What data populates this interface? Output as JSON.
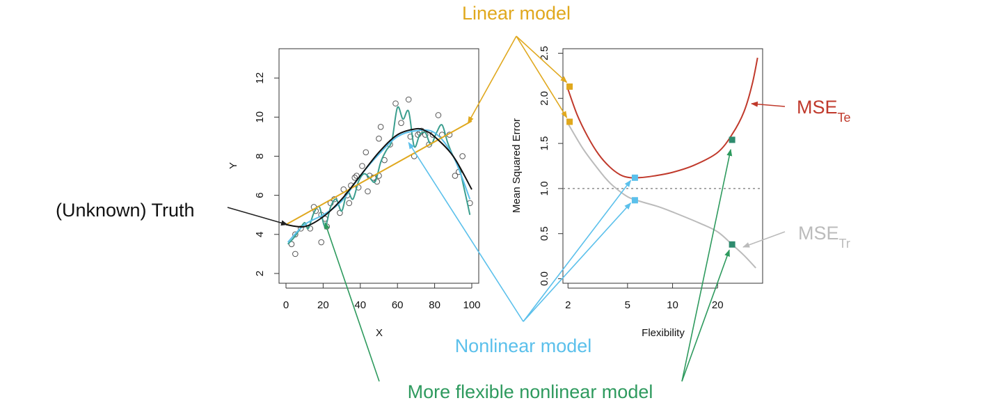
{
  "annotations": {
    "linear_model": {
      "text": "Linear model",
      "color": "#E0A81E"
    },
    "nonlinear_model": {
      "text": "Nonlinear model",
      "color": "#5BC0EB"
    },
    "more_flexible": {
      "text": "More flexible nonlinear model",
      "color": "#2E9A5E"
    },
    "truth": {
      "text": "(Unknown) Truth",
      "color": "#111111"
    },
    "mse_te": {
      "main": "MSE",
      "sub": "Te",
      "color": "#C0392B"
    },
    "mse_tr": {
      "main": "MSE",
      "sub": "Tr",
      "color": "#BBBBBB"
    }
  },
  "colors": {
    "truth": "#111111",
    "linear": "#E0A81E",
    "smooth": "#5BC0EB",
    "flexible": "#3A9E8E",
    "mse_te": "#C0392B",
    "mse_tr": "#BBBBBB",
    "dots": "#555555",
    "marker_flexible": "#2E8B6E"
  },
  "chart_data": [
    {
      "type": "scatter",
      "xlabel": "X",
      "ylabel": "Y",
      "xlim": [
        0,
        100
      ],
      "ylim": [
        1.5,
        13.5
      ],
      "xticks": [
        0,
        20,
        40,
        60,
        80,
        100
      ],
      "yticks": [
        2,
        4,
        6,
        8,
        10,
        12
      ],
      "points": [
        [
          3,
          3.5
        ],
        [
          5,
          4.0
        ],
        [
          5,
          3.0
        ],
        [
          8,
          4.3
        ],
        [
          13,
          4.3
        ],
        [
          15,
          5.4
        ],
        [
          16,
          5.2
        ],
        [
          19,
          5.0
        ],
        [
          19,
          3.6
        ],
        [
          21,
          4.8
        ],
        [
          22,
          4.4
        ],
        [
          24,
          5.6
        ],
        [
          26,
          5.8
        ],
        [
          29,
          5.1
        ],
        [
          31,
          6.3
        ],
        [
          33,
          6.0
        ],
        [
          34,
          5.6
        ],
        [
          35,
          6.5
        ],
        [
          37,
          6.9
        ],
        [
          38,
          7.0
        ],
        [
          39,
          6.4
        ],
        [
          41,
          7.5
        ],
        [
          43,
          8.2
        ],
        [
          44,
          6.2
        ],
        [
          45,
          7.0
        ],
        [
          47,
          6.9
        ],
        [
          49,
          6.7
        ],
        [
          50,
          7.0
        ],
        [
          50,
          8.9
        ],
        [
          51,
          9.5
        ],
        [
          53,
          7.8
        ],
        [
          56,
          8.6
        ],
        [
          59,
          10.7
        ],
        [
          62,
          9.7
        ],
        [
          66,
          10.9
        ],
        [
          67,
          9.0
        ],
        [
          69,
          8.0
        ],
        [
          71,
          9.1
        ],
        [
          72,
          9.2
        ],
        [
          73,
          9.3
        ],
        [
          75,
          9.1
        ],
        [
          77,
          8.6
        ],
        [
          79,
          9.1
        ],
        [
          82,
          10.1
        ],
        [
          84,
          9.1
        ],
        [
          88,
          9.1
        ],
        [
          91,
          7.0
        ],
        [
          93,
          7.2
        ],
        [
          95,
          8.0
        ],
        [
          99,
          5.6
        ]
      ],
      "series": [
        {
          "name": "(Unknown) Truth",
          "x": [
            0,
            10,
            20,
            30,
            40,
            50,
            60,
            70,
            75,
            80,
            90,
            100
          ],
          "y": [
            4.5,
            4.4,
            4.9,
            5.8,
            7.0,
            8.2,
            9.1,
            9.4,
            9.3,
            9.0,
            8.0,
            6.3
          ]
        },
        {
          "name": "Linear model",
          "x": [
            0,
            100
          ],
          "y": [
            4.5,
            9.8
          ]
        },
        {
          "x": [
            1,
            10,
            20,
            30,
            40,
            50,
            60,
            70,
            80,
            90,
            99
          ],
          "y": [
            3.6,
            4.5,
            5.0,
            5.7,
            7.0,
            8.1,
            9.0,
            9.3,
            9.2,
            8.0,
            5.8
          ]
        },
        {
          "x": [
            1,
            4,
            7,
            10,
            12,
            15,
            18,
            21,
            24,
            27,
            30,
            33,
            36,
            39,
            42,
            45,
            48,
            51,
            54,
            57,
            60,
            63,
            66,
            69,
            72,
            75,
            78,
            81,
            84,
            87,
            90,
            93,
            96,
            99
          ],
          "y": [
            3.5,
            3.8,
            4.2,
            4.6,
            4.3,
            5.1,
            5.4,
            4.4,
            5.4,
            5.8,
            5.2,
            6.2,
            5.8,
            6.7,
            7.1,
            6.9,
            6.7,
            7.7,
            8.3,
            8.8,
            10.5,
            9.9,
            10.3,
            8.5,
            9.1,
            9.2,
            8.6,
            9.2,
            9.6,
            8.7,
            8.0,
            7.5,
            6.3,
            5.0
          ]
        }
      ]
    },
    {
      "type": "line",
      "xlabel": "Flexibility",
      "ylabel": "Mean Squared Error",
      "xscale": "log",
      "xlim": [
        1.85,
        40
      ],
      "ylim": [
        -0.05,
        2.55
      ],
      "xticks": [
        2,
        5,
        10,
        20
      ],
      "yticks": [
        0.0,
        0.5,
        1.0,
        1.5,
        2.0,
        2.5
      ],
      "reference_line": {
        "y": 1.0,
        "style": "dotted"
      },
      "series": [
        {
          "name": "MSETe",
          "x": [
            2.0,
            2.3,
            2.7,
            3.2,
            3.8,
            4.5,
            5.2,
            6.0,
            7.5,
            10,
            14,
            20,
            25,
            30,
            34,
            37
          ],
          "y": [
            2.1,
            1.82,
            1.58,
            1.38,
            1.24,
            1.15,
            1.12,
            1.12,
            1.14,
            1.18,
            1.26,
            1.4,
            1.6,
            1.85,
            2.15,
            2.45
          ]
        },
        {
          "name": "MSETr",
          "x": [
            2.0,
            2.5,
            3.0,
            3.5,
            4.0,
            5.0,
            6.0,
            8.0,
            10,
            15,
            20,
            25,
            30,
            36
          ],
          "y": [
            1.72,
            1.45,
            1.27,
            1.13,
            1.03,
            0.91,
            0.86,
            0.8,
            0.74,
            0.62,
            0.52,
            0.38,
            0.26,
            0.12
          ]
        }
      ],
      "markers": [
        {
          "model": "Linear model",
          "x": 2.05,
          "y": 2.13
        },
        {
          "model": "Linear model",
          "x": 2.05,
          "y": 1.74
        },
        {
          "model": "Nonlinear model",
          "x": 5.6,
          "y": 1.12
        },
        {
          "model": "Nonlinear model",
          "x": 5.6,
          "y": 0.87
        },
        {
          "model": "More flexible nonlinear model",
          "x": 25,
          "y": 1.54
        },
        {
          "model": "More flexible nonlinear model",
          "x": 25,
          "y": 0.38
        }
      ]
    }
  ]
}
